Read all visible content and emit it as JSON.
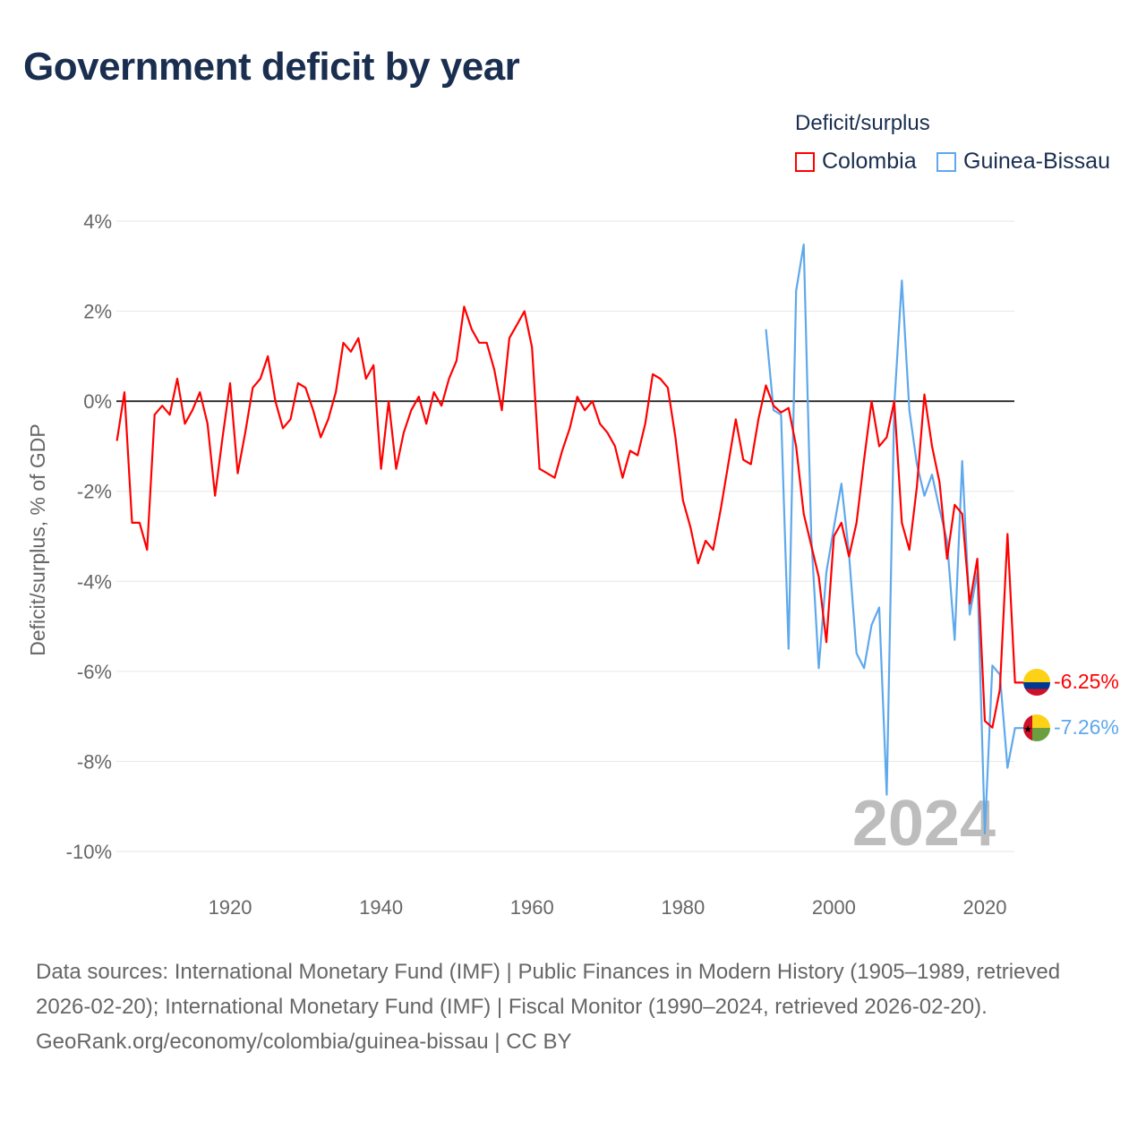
{
  "title": "Government deficit by year",
  "legend": {
    "title": "Deficit/surplus",
    "items": [
      {
        "label": "Colombia",
        "color": "#ff0000"
      },
      {
        "label": "Guinea-Bissau",
        "color": "#5ea8ec"
      }
    ]
  },
  "footer": {
    "sources": "Data sources: International Monetary Fund (IMF) | Public Finances in Modern History (1905–1989, retrieved 2026-02-20); International Monetary Fund (IMF) | Fiscal Monitor (1990–2024, retrieved 2026-02-20).",
    "credit": "GeoRank.org/economy/colombia/guinea-bissau | CC BY"
  },
  "chart_data": {
    "type": "line",
    "title": "Government deficit by year",
    "ylabel": "Deficit/surplus, % of GDP",
    "xlim": [
      1905,
      2024
    ],
    "ylim": [
      -10,
      4
    ],
    "xticks": [
      1920,
      1940,
      1960,
      1980,
      2000,
      2020
    ],
    "xtick_labels": [
      "1920",
      "1940",
      "1960",
      "1980",
      "2000",
      "2020"
    ],
    "yticks": [
      4,
      2,
      0,
      -2,
      -4,
      -6,
      -8,
      -10
    ],
    "ytick_labels": [
      "4%",
      "2%",
      "0%",
      "-2%",
      "-4%",
      "-6%",
      "-8%",
      "-10%"
    ],
    "year_label": "2024",
    "series": [
      {
        "name": "Colombia",
        "color": "#ff0000",
        "end_label": "-6.25%",
        "start": 1905,
        "values": [
          -0.88,
          0.2,
          -2.7,
          -2.7,
          -3.3,
          -0.3,
          -0.1,
          -0.3,
          0.5,
          -0.5,
          -0.2,
          0.2,
          -0.5,
          -2.1,
          -0.8,
          0.4,
          -1.6,
          -0.7,
          0.3,
          0.5,
          1.0,
          0,
          -0.6,
          -0.4,
          0.4,
          0.3,
          -0.2,
          -0.8,
          -0.4,
          0.2,
          1.3,
          1.1,
          1.4,
          0.5,
          0.8,
          -1.5,
          0,
          -1.5,
          -0.7,
          -0.2,
          0.1,
          -0.5,
          0.2,
          -0.1,
          0.5,
          0.9,
          2.1,
          1.6,
          1.3,
          1.3,
          0.7,
          -0.2,
          1.4,
          1.7,
          2.0,
          1.2,
          -1.5,
          -1.6,
          -1.7,
          -1.1,
          -0.6,
          0.1,
          -0.2,
          0,
          -0.5,
          -0.7,
          -1.0,
          -1.7,
          -1.1,
          -1.2,
          -0.5,
          0.6,
          0.5,
          0.3,
          -0.8,
          -2.2,
          -2.8,
          -3.6,
          -3.1,
          -3.3,
          -2.4,
          -1.4,
          -0.4,
          -1.3,
          -1.4,
          -0.4,
          0.35,
          -0.1,
          -0.25,
          -0.15,
          -1.0,
          -2.5,
          -3.2,
          -3.9,
          -5.35,
          -3.0,
          -2.7,
          -3.45,
          -2.7,
          -1.3,
          0,
          -1.0,
          -0.8,
          0,
          -2.7,
          -3.3,
          -1.9,
          0.15,
          -1.0,
          -1.8,
          -3.5,
          -2.3,
          -2.5,
          -4.5,
          -3.5,
          -7.1,
          -7.25,
          -6.4,
          -2.95,
          -6.25
        ]
      },
      {
        "name": "Guinea-Bissau",
        "color": "#5ea8ec",
        "end_label": "-7.26%",
        "start": 1991,
        "values": [
          1.6,
          -0.2,
          -0.3,
          -5.5,
          2.45,
          3.48,
          -3.0,
          -5.93,
          -3.8,
          -2.8,
          -1.83,
          -3.4,
          -5.6,
          -5.93,
          -4.97,
          -4.58,
          -8.74,
          -0.1,
          2.68,
          -0.2,
          -1.4,
          -2.1,
          -1.63,
          -2.4,
          -3.1,
          -5.3,
          -1.33,
          -4.74,
          -3.8,
          -9.6,
          -5.87,
          -6.07,
          -8.14,
          -7.26
        ]
      }
    ]
  }
}
